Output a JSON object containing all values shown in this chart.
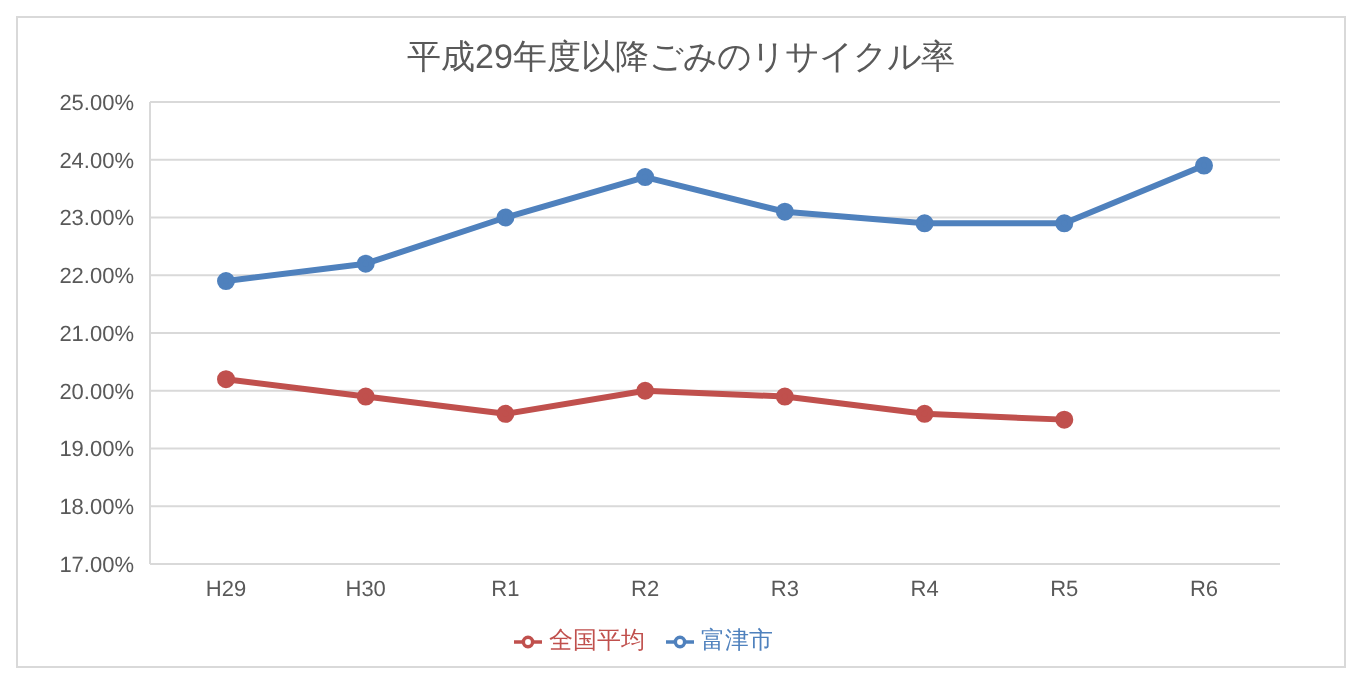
{
  "chart_data": {
    "type": "line",
    "title": "平成29年度以降ごみのリサイクル率",
    "categories": [
      "H29",
      "H30",
      "R1",
      "R2",
      "R3",
      "R4",
      "R5",
      "R6"
    ],
    "series": [
      {
        "name": "富津市",
        "color": "#4f81bd",
        "values": [
          21.9,
          22.2,
          23.0,
          23.7,
          23.1,
          22.9,
          22.9,
          23.9
        ]
      },
      {
        "name": "全国平均",
        "color": "#c0504d",
        "values": [
          20.2,
          19.9,
          19.6,
          20.0,
          19.9,
          19.6,
          19.5,
          null
        ]
      }
    ],
    "ylim": [
      17,
      25
    ],
    "yticks": [
      {
        "value": 17,
        "label": "17.00%"
      },
      {
        "value": 18,
        "label": "18.00%"
      },
      {
        "value": 19,
        "label": "19.00%"
      },
      {
        "value": 20,
        "label": "20.00%"
      },
      {
        "value": 21,
        "label": "21.00%"
      },
      {
        "value": 22,
        "label": "22.00%"
      },
      {
        "value": 23,
        "label": "23.00%"
      },
      {
        "value": 24,
        "label": "24.00%"
      },
      {
        "value": 25,
        "label": "25.00%"
      }
    ],
    "grid": "y",
    "legend": "bottom",
    "marker": "circle",
    "line_style": "solid"
  }
}
